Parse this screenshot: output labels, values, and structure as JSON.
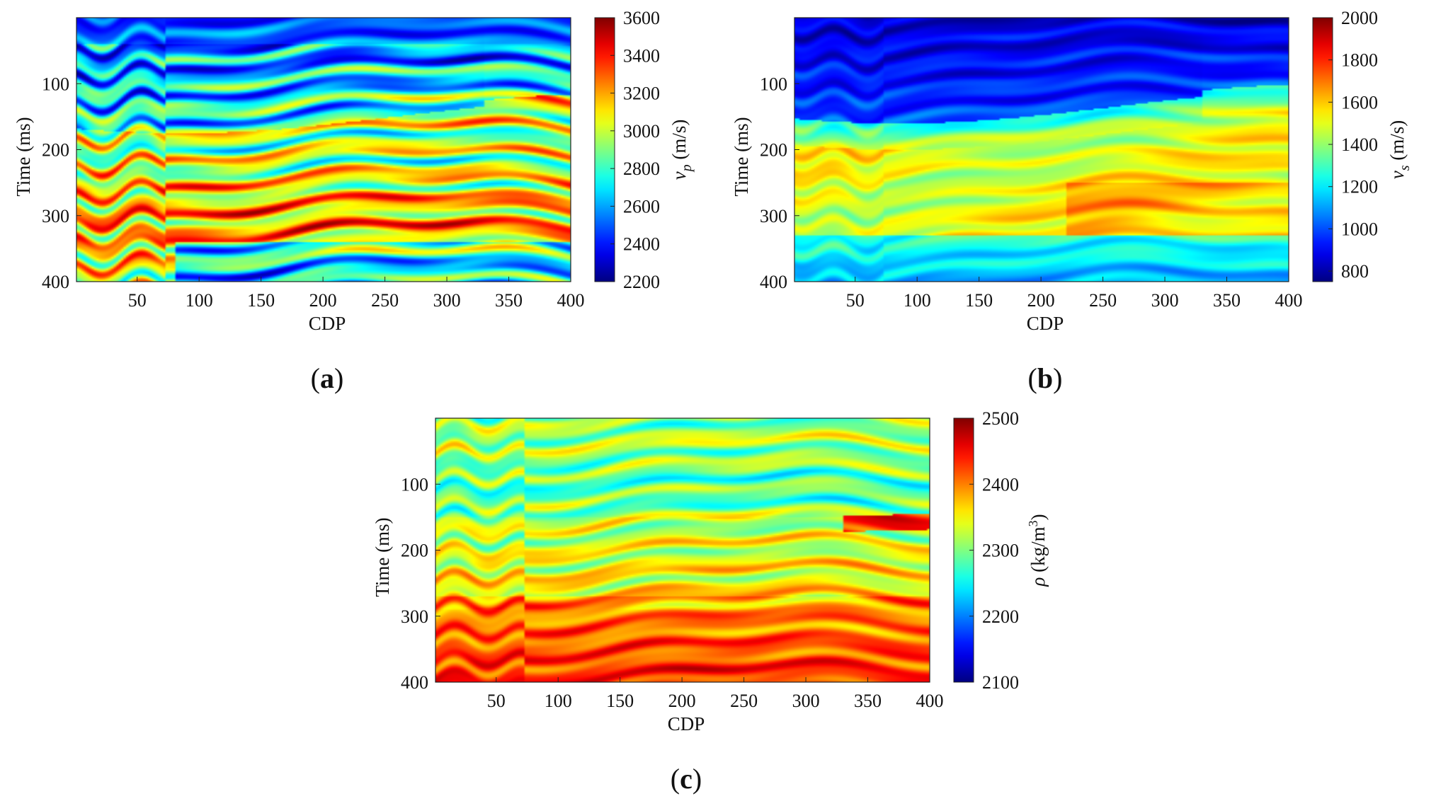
{
  "chart_data": [
    {
      "panel": "a",
      "panel_label": "(a)",
      "type": "heatmap",
      "xlabel": "CDP",
      "ylabel": "Time (ms)",
      "xticks": [
        50,
        100,
        150,
        200,
        250,
        300,
        350,
        400
      ],
      "yticks": [
        100,
        200,
        300,
        400
      ],
      "xlim": [
        1,
        400
      ],
      "ylim": [
        0,
        400
      ],
      "colorbar": {
        "label_symbol": "v",
        "label_subscript": "p",
        "label_unit": "(m/s)",
        "ticks": [
          2200,
          2400,
          2600,
          2800,
          3000,
          3200,
          3400,
          3600
        ],
        "range": [
          2200,
          3600
        ]
      }
    },
    {
      "panel": "b",
      "panel_label": "(b)",
      "type": "heatmap",
      "xlabel": "CDP",
      "ylabel": "Time (ms)",
      "xticks": [
        50,
        100,
        150,
        200,
        250,
        300,
        350,
        400
      ],
      "yticks": [
        100,
        200,
        300,
        400
      ],
      "xlim": [
        1,
        400
      ],
      "ylim": [
        0,
        400
      ],
      "colorbar": {
        "label_symbol": "v",
        "label_subscript": "s",
        "label_unit": "(m/s)",
        "ticks": [
          800,
          1000,
          1200,
          1400,
          1600,
          1800,
          2000
        ],
        "range": [
          750,
          2000
        ]
      }
    },
    {
      "panel": "c",
      "panel_label": "(c)",
      "type": "heatmap",
      "xlabel": "CDP",
      "ylabel": "Time (ms)",
      "xticks": [
        50,
        100,
        150,
        200,
        250,
        300,
        350,
        400
      ],
      "yticks": [
        100,
        200,
        300,
        400
      ],
      "xlim": [
        1,
        400
      ],
      "ylim": [
        0,
        400
      ],
      "colorbar": {
        "label_symbol": "ρ",
        "label_subscript": "",
        "label_unit": "(kg/m",
        "label_unit_sup": "3",
        "label_unit_end": ")",
        "ticks": [
          2100,
          2200,
          2300,
          2400,
          2500
        ],
        "range": [
          2100,
          2500
        ]
      }
    }
  ]
}
